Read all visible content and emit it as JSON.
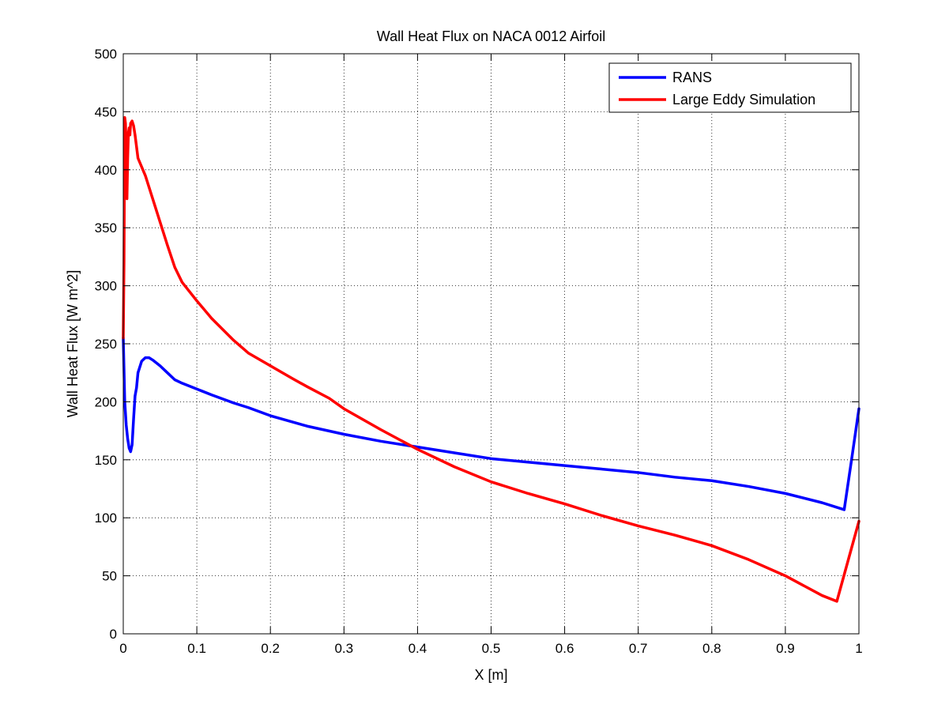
{
  "chart_data": {
    "type": "line",
    "title": "Wall Heat Flux on NACA 0012 Airfoil",
    "xlabel": "X [m]",
    "ylabel": "Wall Heat Flux [W m^2]",
    "xlim": [
      0,
      1
    ],
    "ylim": [
      0,
      500
    ],
    "xticks": [
      0,
      0.1,
      0.2,
      0.3,
      0.4,
      0.5,
      0.6,
      0.7,
      0.8,
      0.9,
      1
    ],
    "xtick_labels": [
      "0",
      "0.1",
      "0.2",
      "0.3",
      "0.4",
      "0.5",
      "0.6",
      "0.7",
      "0.8",
      "0.9",
      "1"
    ],
    "yticks": [
      0,
      50,
      100,
      150,
      200,
      250,
      300,
      350,
      400,
      450,
      500
    ],
    "ytick_labels": [
      "0",
      "50",
      "100",
      "150",
      "200",
      "250",
      "300",
      "350",
      "400",
      "450",
      "500"
    ],
    "grid": true,
    "legend_position": "top-right",
    "series": [
      {
        "name": "RANS",
        "color": "#0000ff",
        "x": [
          0,
          0.002,
          0.004,
          0.006,
          0.008,
          0.01,
          0.012,
          0.014,
          0.016,
          0.018,
          0.02,
          0.025,
          0.03,
          0.035,
          0.04,
          0.05,
          0.06,
          0.07,
          0.08,
          0.1,
          0.12,
          0.15,
          0.17,
          0.2,
          0.25,
          0.3,
          0.35,
          0.4,
          0.45,
          0.5,
          0.55,
          0.6,
          0.65,
          0.7,
          0.75,
          0.8,
          0.85,
          0.9,
          0.95,
          0.98,
          0.99,
          1.0
        ],
        "y": [
          255,
          200,
          180,
          168,
          160,
          157,
          163,
          185,
          205,
          212,
          225,
          235,
          238,
          238,
          236,
          231,
          225,
          219,
          216,
          211,
          206,
          199,
          195,
          188,
          179,
          172,
          166,
          161,
          156,
          151,
          148,
          145,
          142,
          139,
          135,
          132,
          127,
          121,
          113,
          107,
          150,
          194
        ]
      },
      {
        "name": "Large Eddy Simulation",
        "color": "#ff0000",
        "x": [
          0,
          0.001,
          0.002,
          0.003,
          0.004,
          0.005,
          0.006,
          0.007,
          0.008,
          0.009,
          0.01,
          0.012,
          0.014,
          0.016,
          0.018,
          0.02,
          0.03,
          0.04,
          0.05,
          0.06,
          0.07,
          0.08,
          0.1,
          0.12,
          0.15,
          0.17,
          0.2,
          0.23,
          0.25,
          0.28,
          0.3,
          0.35,
          0.4,
          0.45,
          0.5,
          0.55,
          0.6,
          0.65,
          0.7,
          0.75,
          0.8,
          0.85,
          0.9,
          0.95,
          0.97,
          1.0
        ],
        "y": [
          255,
          320,
          445,
          440,
          420,
          375,
          410,
          432,
          436,
          430,
          440,
          442,
          438,
          430,
          420,
          410,
          395,
          375,
          355,
          335,
          316,
          303,
          287,
          272,
          253,
          242,
          231,
          220,
          213,
          203,
          194,
          176,
          159,
          144,
          131,
          121,
          112,
          102,
          93,
          85,
          76,
          64,
          50,
          33,
          28,
          97
        ]
      }
    ]
  }
}
